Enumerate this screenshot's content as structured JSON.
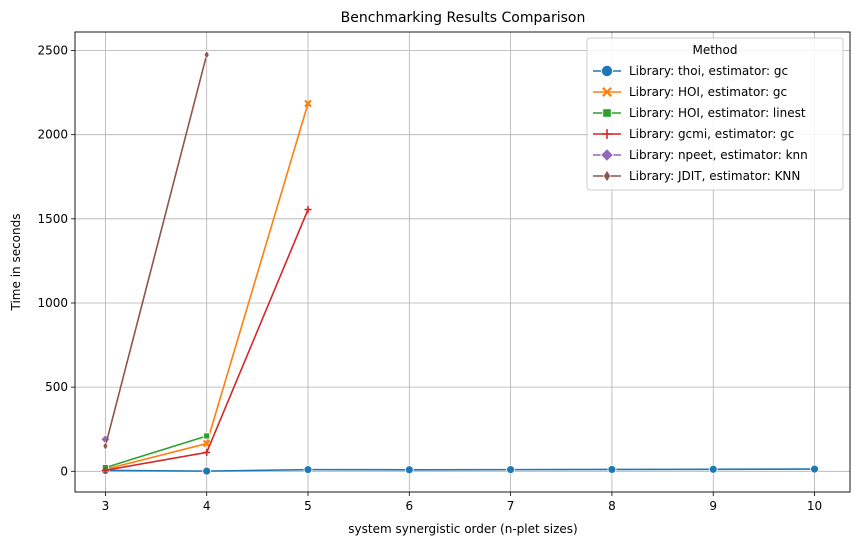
{
  "chart_data": {
    "type": "line",
    "title": "Benchmarking Results Comparison",
    "xlabel": "system synergistic order (n-plet sizes)",
    "ylabel": "Time in seconds",
    "xlim": [
      2.7,
      10.35
    ],
    "ylim": [
      -123,
      2610
    ],
    "xticks": [
      3,
      4,
      5,
      6,
      7,
      8,
      9,
      10
    ],
    "xtick_labels": [
      "3",
      "4",
      "5",
      "6",
      "7",
      "8",
      "9",
      "10"
    ],
    "yticks": [
      0,
      500,
      1000,
      1500,
      2000,
      2500
    ],
    "ytick_labels": [
      "0",
      "500",
      "1000",
      "1500",
      "2000",
      "2500"
    ],
    "grid": true,
    "legend_title": "Method",
    "legend_position": "upper-right",
    "series": [
      {
        "name": "Library: thoi, estimator: gc",
        "color": "#1f77b4",
        "marker": "circle",
        "x": [
          3,
          4,
          5,
          6,
          7,
          8,
          9,
          10
        ],
        "values": [
          5,
          1,
          10,
          9,
          10,
          11,
          12,
          13
        ]
      },
      {
        "name": "Library: HOI, estimator: gc",
        "color": "#ff7f0e",
        "marker": "x",
        "x": [
          3,
          4,
          5
        ],
        "values": [
          12,
          165,
          2185
        ]
      },
      {
        "name": "Library: HOI, estimator: linest",
        "color": "#2ca02c",
        "marker": "square",
        "x": [
          3,
          4
        ],
        "values": [
          22,
          210
        ]
      },
      {
        "name": "Library: gcmi, estimator: gc",
        "color": "#d62728",
        "marker": "plus",
        "x": [
          3,
          4,
          5
        ],
        "values": [
          6,
          112,
          1555
        ]
      },
      {
        "name": "Library: npeet, estimator: knn",
        "color": "#9467bd",
        "marker": "diamond",
        "x": [
          3
        ],
        "values": [
          190
        ]
      },
      {
        "name": "Library: JDIT, estimator: KNN",
        "color": "#8c564b",
        "marker": "thin-diamond",
        "x": [
          3,
          4
        ],
        "values": [
          150,
          2475
        ]
      }
    ]
  }
}
